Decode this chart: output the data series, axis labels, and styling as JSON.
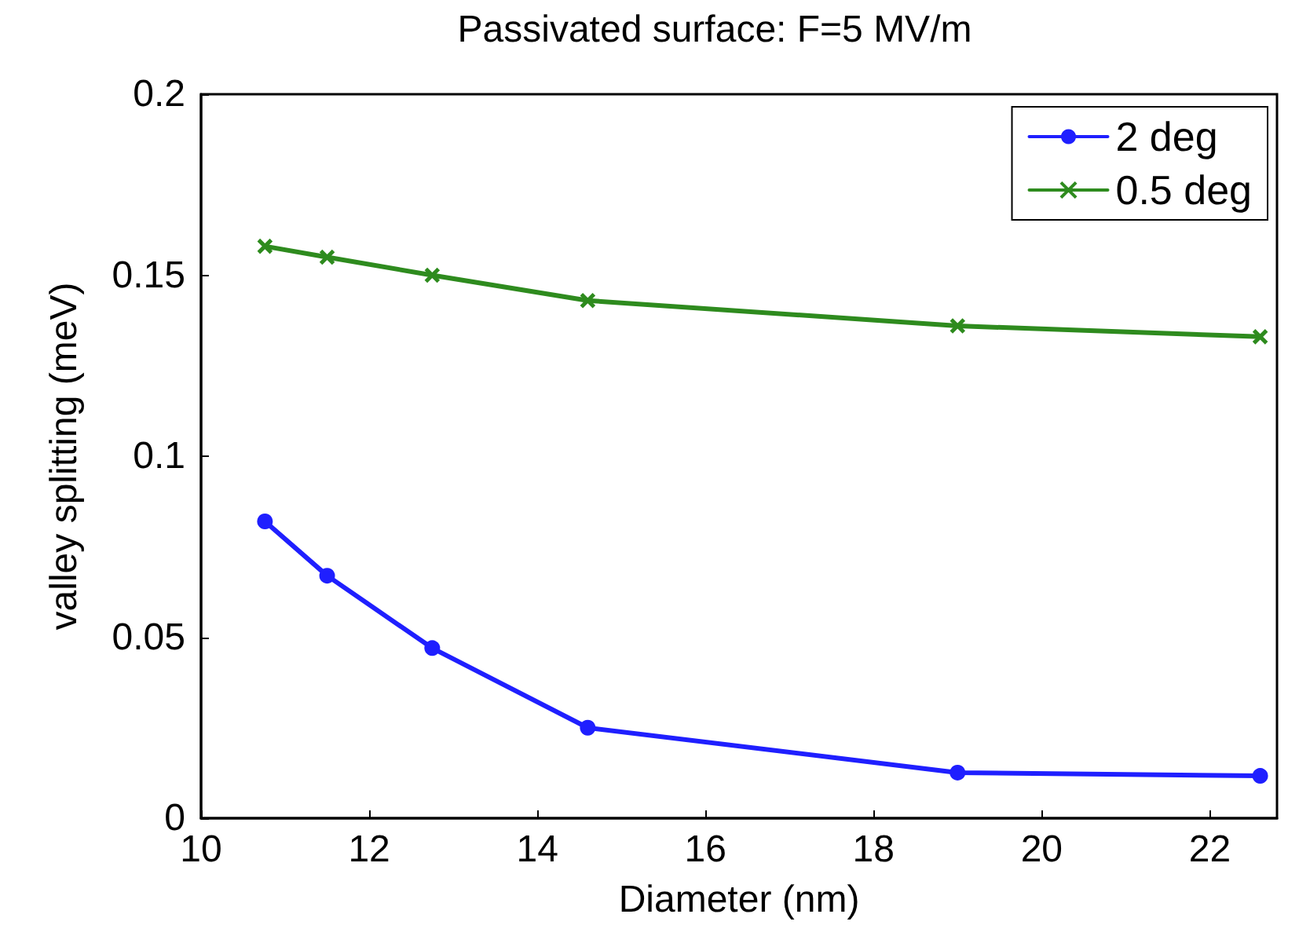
{
  "chart_data": {
    "type": "line",
    "title": "Passivated surface: F=5 MV/m",
    "xlabel": "Diameter (nm)",
    "ylabel": "valley splitting (meV)",
    "x": [
      10.76,
      11.5,
      12.75,
      14.6,
      19.0,
      22.6
    ],
    "series": [
      {
        "name": "2 deg",
        "color": "#1f1fff",
        "marker": "circle",
        "values": [
          0.082,
          0.067,
          0.047,
          0.025,
          0.0126,
          0.0117
        ]
      },
      {
        "name": "0.5 deg",
        "color": "#2e8b1e",
        "marker": "cross",
        "values": [
          0.158,
          0.155,
          0.15,
          0.143,
          0.136,
          0.133
        ]
      }
    ],
    "xlim": [
      10,
      22.8
    ],
    "xticks": [
      10,
      12,
      14,
      16,
      18,
      20,
      22
    ],
    "ylim": [
      0,
      0.2
    ],
    "yticks": [
      0,
      0.05,
      0.1,
      0.15,
      0.2
    ],
    "grid": false,
    "legend": "top right",
    "line_style": "solid"
  }
}
